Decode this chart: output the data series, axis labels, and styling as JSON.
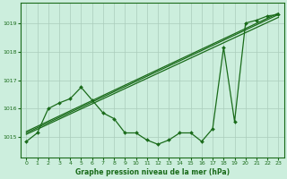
{
  "title": "Graphe pression niveau de la mer (hPa)",
  "bg_color": "#cceedd",
  "grid_color": "#aaccbb",
  "line_color": "#1a6b1a",
  "xlim": [
    -0.5,
    23.5
  ],
  "ylim": [
    1014.3,
    1019.7
  ],
  "yticks": [
    1015,
    1016,
    1017,
    1018,
    1019
  ],
  "xticks": [
    0,
    1,
    2,
    3,
    4,
    5,
    6,
    7,
    8,
    9,
    10,
    11,
    12,
    13,
    14,
    15,
    16,
    17,
    18,
    19,
    20,
    21,
    22,
    23
  ],
  "line1_x": [
    0,
    1,
    2,
    3,
    4,
    5,
    6,
    7,
    8,
    9,
    10,
    11,
    12,
    13,
    14,
    15,
    16,
    17,
    18,
    19,
    20,
    21,
    22,
    23
  ],
  "line1_y": [
    1014.85,
    1015.15,
    1016.0,
    1016.2,
    1016.35,
    1016.75,
    1016.3,
    1015.85,
    1015.65,
    1015.15,
    1015.15,
    1014.9,
    1014.75,
    1014.9,
    1015.15,
    1015.15,
    1014.85,
    1015.3,
    1018.15,
    1015.55,
    1019.0,
    1019.1,
    1019.25,
    1019.3
  ],
  "line2_x": [
    0,
    23
  ],
  "line2_y": [
    1015.1,
    1019.2
  ],
  "line3_x": [
    0,
    23
  ],
  "line3_y": [
    1015.15,
    1019.3
  ],
  "line4_x": [
    0,
    23
  ],
  "line4_y": [
    1015.2,
    1019.35
  ]
}
